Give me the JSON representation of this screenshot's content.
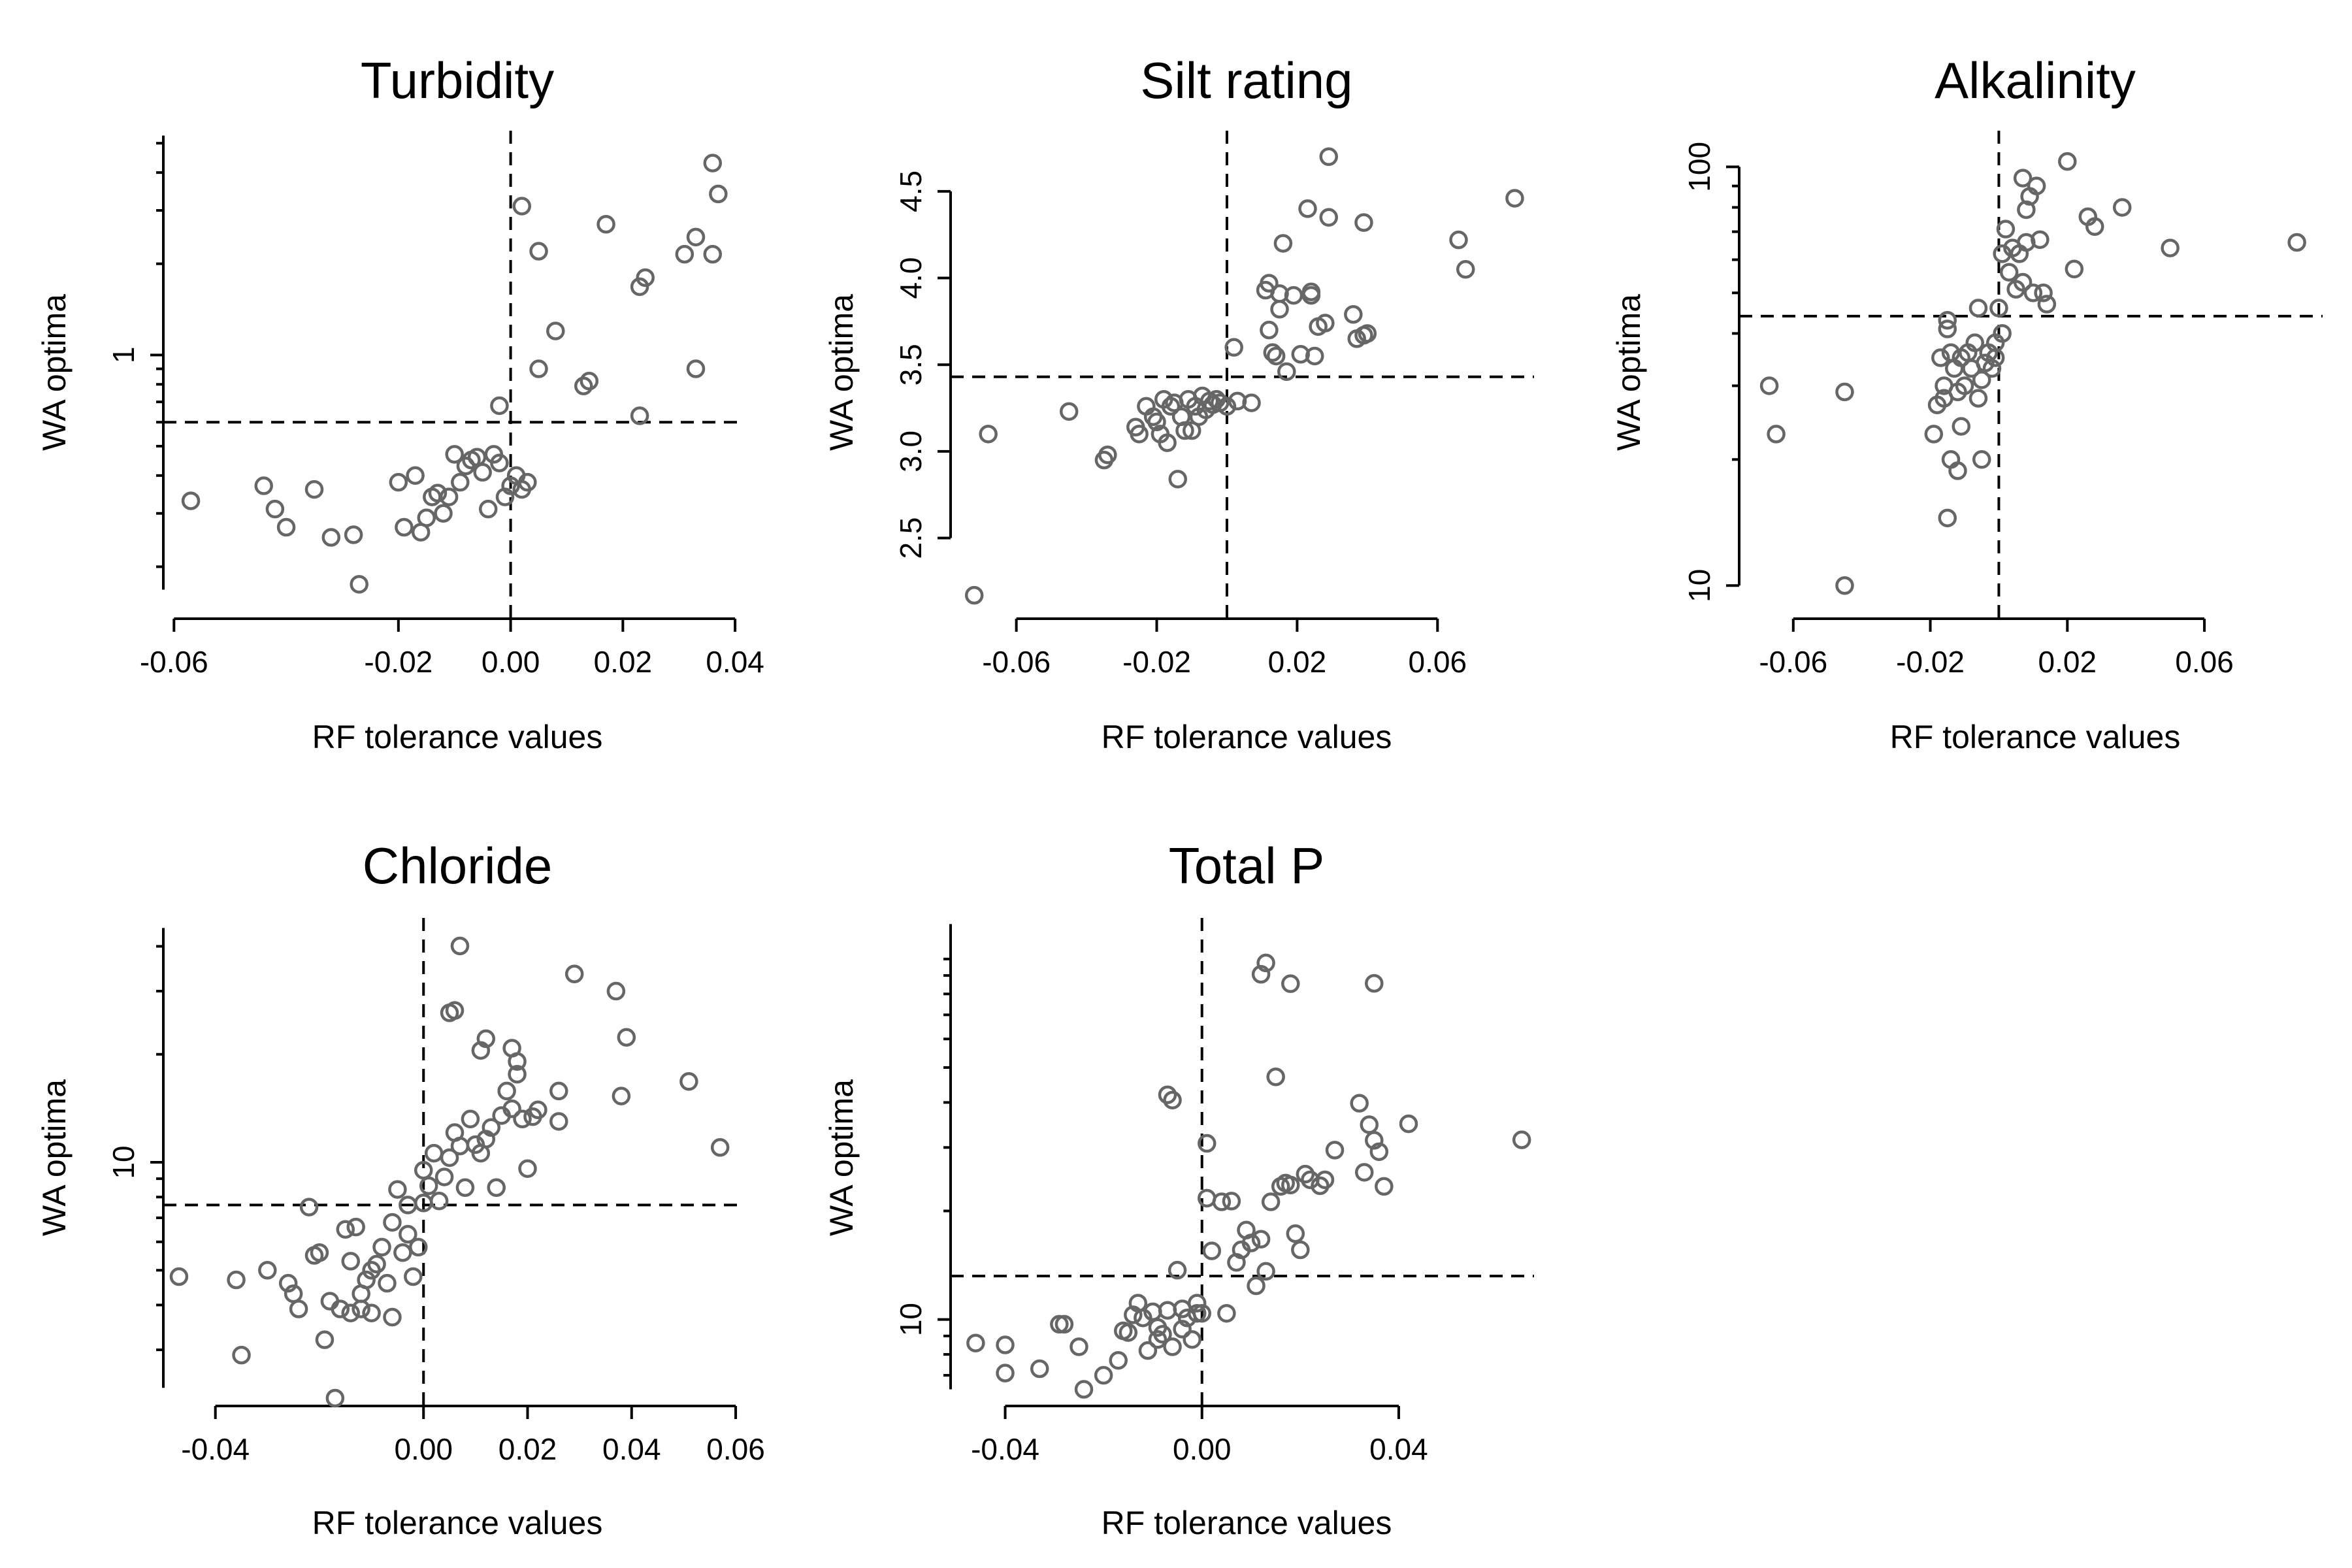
{
  "colors": {
    "points": "#666666",
    "axes": "#000000",
    "background": "#ffffff"
  },
  "chart_data": [
    {
      "type": "scatter",
      "title": "Turbidity",
      "xlabel": "RF tolerance values",
      "ylabel": "WA optima",
      "xlim": [
        -0.0605,
        0.0415
      ],
      "xticks": [
        -0.06,
        -0.02,
        0.0,
        0.02,
        0.04
      ],
      "xtick_labels": [
        "-0.06",
        "-0.02",
        "0.00",
        "0.02",
        "0.04"
      ],
      "ylog": true,
      "ylim": [
        0.143,
        5.5
      ],
      "yaxis_range": [
        0.168,
        5.3
      ],
      "yticks": [
        1
      ],
      "ytick_labels": [
        "1"
      ],
      "minor_yticks": [
        0.2,
        0.3,
        0.4,
        0.5,
        0.6,
        0.7,
        0.8,
        0.9,
        2,
        3,
        4,
        5
      ],
      "ref_x": 0.0,
      "ref_y": 0.6,
      "x": [
        -0.057,
        -0.044,
        -0.042,
        -0.04,
        -0.035,
        -0.032,
        -0.028,
        -0.027,
        -0.02,
        -0.019,
        -0.017,
        -0.016,
        -0.015,
        -0.014,
        -0.013,
        -0.012,
        -0.011,
        -0.01,
        -0.009,
        -0.008,
        -0.007,
        -0.006,
        -0.005,
        -0.004,
        -0.003,
        -0.002,
        -0.001,
        0.0,
        0.001,
        0.002,
        0.003,
        -0.002,
        0.002,
        0.005,
        0.005,
        0.008,
        0.017,
        0.013,
        0.014,
        0.023,
        0.024,
        0.023,
        0.031,
        0.033,
        0.036,
        0.037,
        0.036,
        0.033
      ],
      "y": [
        0.33,
        0.37,
        0.31,
        0.27,
        0.36,
        0.25,
        0.255,
        0.175,
        0.38,
        0.27,
        0.4,
        0.26,
        0.29,
        0.34,
        0.35,
        0.3,
        0.34,
        0.47,
        0.38,
        0.43,
        0.45,
        0.46,
        0.41,
        0.31,
        0.47,
        0.44,
        0.34,
        0.37,
        0.4,
        0.36,
        0.38,
        0.68,
        3.1,
        2.2,
        0.9,
        1.2,
        2.7,
        0.79,
        0.82,
        1.68,
        1.8,
        0.63,
        2.15,
        2.45,
        4.3,
        3.4,
        2.15,
        0.9
      ]
    },
    {
      "type": "scatter",
      "title": "Silt rating",
      "xlabel": "RF tolerance values",
      "ylabel": "WA optima",
      "xlim": [
        -0.0765,
        0.0875
      ],
      "xticks": [
        -0.06,
        -0.02,
        0.02,
        0.06
      ],
      "xtick_labels": [
        "-0.06",
        "-0.02",
        "0.02",
        "0.06"
      ],
      "ylog": false,
      "ylim": [
        2.08,
        4.85
      ],
      "yaxis_range": [
        2.5,
        4.5
      ],
      "yticks": [
        2.5,
        3.0,
        3.5,
        4.0,
        4.5
      ],
      "ytick_labels": [
        "2.5",
        "3.0",
        "3.5",
        "4.0",
        "4.5"
      ],
      "ref_x": 0.0,
      "ref_y": 3.43,
      "x": [
        -0.072,
        -0.068,
        -0.045,
        -0.035,
        -0.034,
        -0.026,
        -0.025,
        -0.023,
        -0.021,
        -0.02,
        -0.019,
        -0.018,
        -0.017,
        -0.016,
        -0.015,
        -0.014,
        -0.013,
        -0.012,
        -0.011,
        -0.01,
        -0.009,
        -0.008,
        -0.007,
        -0.006,
        -0.005,
        -0.004,
        -0.003,
        -0.002,
        0.0,
        0.002,
        0.003,
        0.007,
        0.011,
        0.012,
        0.012,
        0.013,
        0.014,
        0.015,
        0.015,
        0.016,
        0.017,
        0.019,
        0.021,
        0.023,
        0.024,
        0.024,
        0.025,
        0.026,
        0.028,
        0.029,
        0.029,
        0.036,
        0.037,
        0.039,
        0.039,
        0.04,
        0.066,
        0.068,
        0.082
      ],
      "y": [
        2.17,
        3.1,
        3.23,
        2.95,
        2.98,
        3.14,
        3.1,
        3.26,
        3.2,
        3.17,
        3.1,
        3.3,
        3.05,
        3.26,
        3.28,
        2.84,
        3.2,
        3.12,
        3.3,
        3.12,
        3.26,
        3.2,
        3.32,
        3.24,
        3.29,
        3.27,
        3.3,
        3.28,
        3.26,
        3.6,
        3.29,
        3.28,
        3.93,
        3.97,
        3.7,
        3.57,
        3.55,
        3.82,
        3.91,
        4.2,
        3.46,
        3.9,
        3.56,
        4.4,
        3.92,
        3.9,
        3.55,
        3.72,
        3.74,
        4.7,
        4.35,
        3.79,
        3.65,
        3.67,
        4.32,
        3.68,
        4.22,
        4.05,
        4.46
      ]
    },
    {
      "type": "scatter",
      "title": "Alkalinity",
      "xlabel": "RF tolerance values",
      "ylabel": "WA optima",
      "xlim": [
        -0.0735,
        0.0945
      ],
      "xticks": [
        -0.06,
        -0.02,
        0.02,
        0.06
      ],
      "xtick_labels": [
        "-0.06",
        "-0.02",
        "0.02",
        "0.06"
      ],
      "ylog": true,
      "ylim": [
        8.7,
        122
      ],
      "yaxis_range": [
        10,
        100
      ],
      "yticks": [
        10,
        100
      ],
      "ytick_labels": [
        "10",
        "100"
      ],
      "minor_yticks": [
        20,
        30,
        40,
        50,
        60,
        70,
        80,
        90
      ],
      "ref_x": 0.0,
      "ref_y": 44,
      "x": [
        -0.067,
        -0.065,
        -0.045,
        -0.045,
        -0.019,
        -0.018,
        -0.017,
        -0.016,
        -0.016,
        -0.015,
        -0.015,
        -0.014,
        -0.014,
        -0.013,
        -0.012,
        -0.011,
        -0.01,
        -0.009,
        -0.008,
        -0.007,
        -0.006,
        -0.005,
        -0.005,
        -0.004,
        -0.003,
        -0.002,
        -0.001,
        -0.001,
        0.0,
        0.001,
        0.001,
        0.002,
        0.003,
        0.004,
        0.005,
        0.006,
        0.007,
        0.007,
        0.008,
        0.008,
        0.009,
        0.01,
        0.011,
        0.012,
        0.013,
        0.014,
        0.02,
        0.022,
        0.026,
        0.028,
        0.036,
        0.05,
        0.087,
        -0.015,
        -0.012,
        -0.006,
        -0.011
      ],
      "y": [
        30,
        23,
        29,
        10,
        23,
        27,
        35,
        30,
        28,
        41,
        43,
        36,
        20,
        33,
        29,
        35,
        30,
        36,
        33,
        38,
        28,
        31,
        20,
        34,
        36,
        33,
        38,
        35,
        46,
        40,
        62,
        71,
        56,
        64,
        51,
        62,
        53,
        94,
        66,
        79,
        85,
        50,
        90,
        67,
        50,
        47,
        103,
        57,
        76,
        72,
        80,
        64,
        66,
        14.5,
        18.8,
        46,
        24
      ]
    },
    {
      "type": "scatter",
      "title": "Chloride",
      "xlabel": "RF tolerance values",
      "ylabel": "WA optima",
      "xlim": [
        -0.0485,
        0.0615
      ],
      "xticks": [
        -0.04,
        0.0,
        0.02,
        0.04,
        0.06
      ],
      "xtick_labels": [
        "-0.04",
        "0.00",
        "0.02",
        "0.04",
        "0.06"
      ],
      "ylog": true,
      "ylim": [
        2.2,
        48
      ],
      "yaxis_range": [
        2.35,
        45
      ],
      "yticks": [
        10
      ],
      "ytick_labels": [
        "10"
      ],
      "minor_yticks": [
        3,
        4,
        5,
        6,
        7,
        8,
        9,
        20,
        30,
        40
      ],
      "ref_x": 0.0,
      "ref_y": 7.6,
      "x": [
        -0.047,
        -0.036,
        -0.035,
        -0.03,
        -0.026,
        -0.025,
        -0.024,
        -0.022,
        -0.021,
        -0.02,
        -0.019,
        -0.018,
        -0.017,
        -0.016,
        -0.015,
        -0.014,
        -0.014,
        -0.013,
        -0.012,
        -0.012,
        -0.011,
        -0.01,
        -0.01,
        -0.009,
        -0.008,
        -0.007,
        -0.006,
        -0.006,
        -0.005,
        -0.004,
        -0.003,
        -0.003,
        -0.002,
        -0.001,
        0.0,
        0.0,
        0.001,
        0.002,
        0.003,
        0.004,
        0.005,
        0.006,
        0.007,
        0.008,
        0.009,
        0.01,
        0.011,
        0.012,
        0.013,
        0.014,
        0.015,
        0.016,
        0.017,
        0.018,
        0.019,
        0.02,
        0.021,
        0.022,
        0.026,
        0.026,
        0.029,
        0.037,
        0.038,
        0.039,
        0.051,
        0.057,
        0.012,
        0.011,
        0.006,
        0.005,
        0.007,
        0.017,
        0.018
      ],
      "y": [
        4.8,
        4.7,
        2.9,
        5.0,
        4.6,
        4.3,
        3.9,
        7.5,
        5.5,
        5.6,
        3.2,
        4.1,
        2.2,
        3.9,
        6.5,
        3.8,
        5.3,
        6.6,
        4.3,
        3.9,
        4.7,
        5.0,
        3.8,
        5.2,
        5.8,
        4.6,
        6.8,
        3.7,
        8.4,
        5.6,
        7.6,
        6.3,
        4.8,
        5.8,
        9.5,
        7.7,
        8.6,
        10.6,
        7.8,
        9.1,
        10.3,
        12.1,
        11.1,
        8.5,
        13.2,
        11.2,
        10.6,
        11.6,
        12.5,
        8.5,
        13.5,
        15.8,
        14.1,
        17.6,
        13.2,
        9.6,
        13.4,
        14.0,
        15.8,
        13.0,
        33.5,
        30.0,
        15.3,
        22.3,
        16.8,
        11.0,
        22.1,
        20.5,
        26.5,
        26.1,
        40.1,
        20.8,
        19.1
      ]
    },
    {
      "type": "scatter",
      "title": "Total P",
      "xlabel": "RF tolerance values",
      "ylabel": "WA optima",
      "xlim": [
        -0.0495,
        0.0675
      ],
      "xticks": [
        -0.04,
        0.0,
        0.04
      ],
      "xtick_labels": [
        "-0.04",
        "0.00",
        "0.04"
      ],
      "ylog": true,
      "ylim": [
        6.05,
        130
      ],
      "yaxis_range": [
        6.4,
        125
      ],
      "yticks": [
        10
      ],
      "ytick_labels": [
        "10"
      ],
      "minor_yticks": [
        7,
        8,
        9,
        20,
        30,
        40,
        50,
        60,
        70,
        80,
        90,
        100
      ],
      "ref_x": 0.0,
      "ref_y": 13.2,
      "x": [
        -0.046,
        -0.04,
        -0.04,
        -0.033,
        -0.029,
        -0.028,
        -0.025,
        -0.024,
        -0.02,
        -0.017,
        -0.016,
        -0.015,
        -0.014,
        -0.013,
        -0.012,
        -0.011,
        -0.01,
        -0.009,
        -0.009,
        -0.008,
        -0.007,
        -0.006,
        -0.005,
        -0.004,
        -0.004,
        -0.003,
        -0.002,
        -0.001,
        -0.001,
        0.0,
        0.001,
        0.001,
        0.002,
        0.004,
        0.005,
        0.006,
        0.007,
        0.008,
        0.009,
        0.01,
        0.011,
        0.012,
        0.013,
        0.014,
        0.016,
        0.017,
        0.018,
        0.019,
        0.02,
        0.021,
        0.022,
        0.024,
        0.025,
        0.027,
        0.032,
        0.033,
        0.034,
        0.035,
        0.036,
        0.037,
        0.042,
        0.065,
        -0.007,
        -0.006,
        0.012,
        0.013,
        0.018,
        0.035,
        0.015
      ],
      "y": [
        8.6,
        8.5,
        7.1,
        7.3,
        9.7,
        9.7,
        8.4,
        6.4,
        7.0,
        7.7,
        9.3,
        9.2,
        10.3,
        11.1,
        10.1,
        8.2,
        10.5,
        8.8,
        9.5,
        9.1,
        10.6,
        8.4,
        13.7,
        10.7,
        9.4,
        10.1,
        8.8,
        10.4,
        11.1,
        10.4,
        30.8,
        21.7,
        15.5,
        21.2,
        10.4,
        21.3,
        14.4,
        15.6,
        17.7,
        16.3,
        12.4,
        16.7,
        13.6,
        21.2,
        23.4,
        23.9,
        23.6,
        17.3,
        15.6,
        25.3,
        24.4,
        23.5,
        24.4,
        29.5,
        39.8,
        25.6,
        34.7,
        31.4,
        29.2,
        23.4,
        34.9,
        31.5,
        42.0,
        40.6,
        90.7,
        97.5,
        85.4,
        85.6,
        47.1
      ]
    }
  ]
}
